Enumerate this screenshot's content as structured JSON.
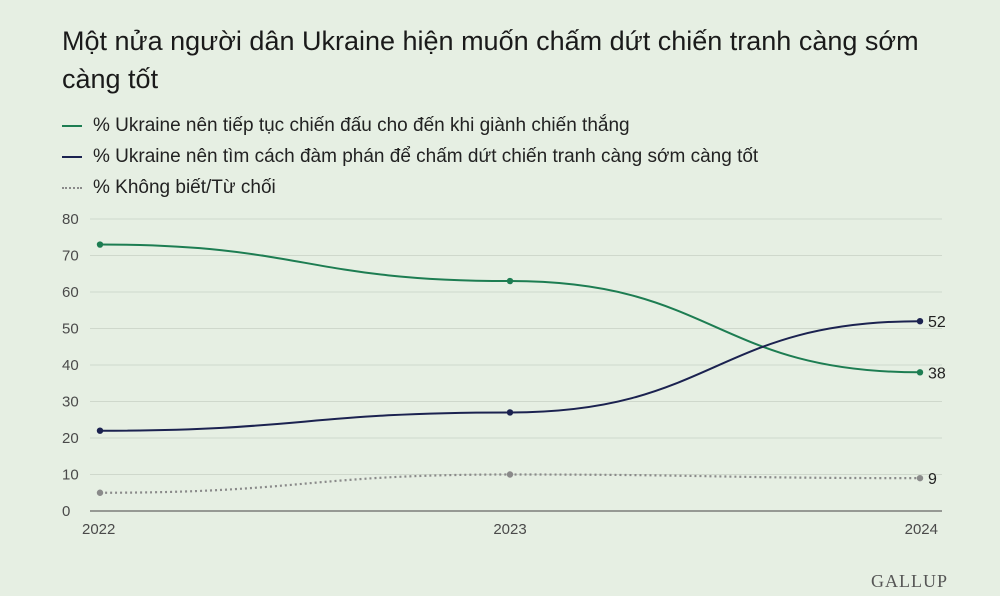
{
  "chart_data": {
    "type": "line",
    "title": "Một nửa người dân Ukraine hiện muốn chấm dứt chiến tranh càng sớm càng tốt",
    "x": [
      "2022",
      "2023",
      "2024"
    ],
    "ylim": [
      0,
      80
    ],
    "yticks": [
      0,
      10,
      20,
      30,
      40,
      50,
      60,
      70,
      80
    ],
    "grid": true,
    "legend_position": "top-left",
    "series": [
      {
        "name": "% Ukraine nên tiếp tục chiến đấu cho đến khi giành chiến thắng",
        "values": [
          73,
          63,
          38
        ],
        "color": "#1d7d52",
        "style": "solid",
        "end_label": "38"
      },
      {
        "name": "% Ukraine nên tìm cách đàm phán để chấm dứt chiến tranh càng sớm càng tốt",
        "values": [
          22,
          27,
          52
        ],
        "color": "#1b2250",
        "style": "solid",
        "end_label": "52"
      },
      {
        "name": "% Không biết/Từ chối",
        "values": [
          5,
          10,
          9
        ],
        "color": "#8a8a8a",
        "style": "dotted",
        "end_label": "9"
      }
    ]
  },
  "branding": "GALLUP"
}
